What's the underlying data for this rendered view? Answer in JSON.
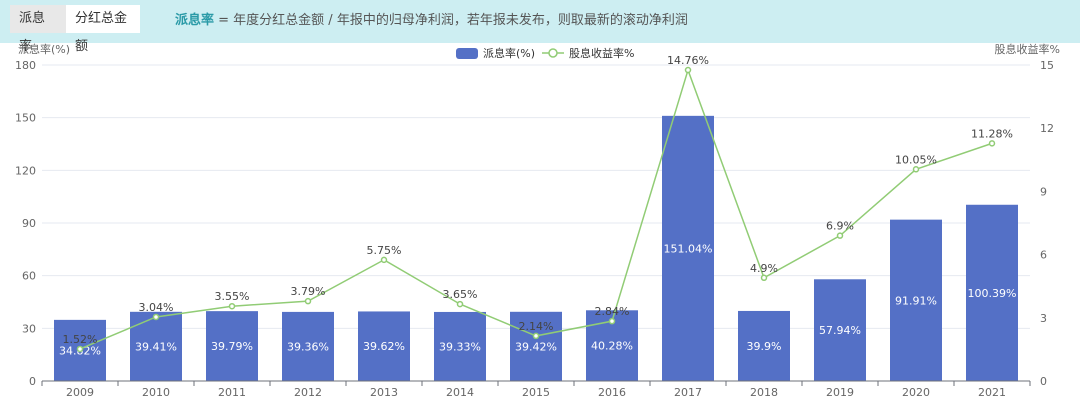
{
  "tabs": [
    {
      "label": "派息率",
      "active": true
    },
    {
      "label": "分红总金额",
      "active": false
    }
  ],
  "description": {
    "term": "派息率",
    "text": " = 年度分红总金额 / 年报中的归母净利润，若年报未发布，则取最新的滚动净利润"
  },
  "colors": {
    "bar": "#5470c6",
    "line": "#91cc75",
    "topbar": "#cdeef2"
  },
  "chart_data": {
    "type": "bar+line",
    "categories": [
      "2009",
      "2010",
      "2011",
      "2012",
      "2013",
      "2014",
      "2015",
      "2016",
      "2017",
      "2018",
      "2019",
      "2020",
      "2021"
    ],
    "series": [
      {
        "name": "派息率(%)",
        "type": "bar",
        "axis": "left",
        "values": [
          34.82,
          39.41,
          39.79,
          39.36,
          39.62,
          39.33,
          39.42,
          40.28,
          151.04,
          39.9,
          57.94,
          91.91,
          100.39
        ],
        "labels": [
          "34.82%",
          "39.41%",
          "39.79%",
          "39.36%",
          "39.62%",
          "39.33%",
          "39.42%",
          "40.28%",
          "151.04%",
          "39.9%",
          "57.94%",
          "91.91%",
          "100.39%"
        ]
      },
      {
        "name": "股息收益率%",
        "type": "line",
        "axis": "right",
        "values": [
          1.52,
          3.04,
          3.55,
          3.79,
          5.75,
          3.65,
          2.14,
          2.84,
          14.76,
          4.9,
          6.9,
          10.05,
          11.28
        ],
        "labels": [
          "1.52%",
          "3.04%",
          "3.55%",
          "3.79%",
          "5.75%",
          "3.65%",
          "2.14%",
          "2.84%",
          "14.76%",
          "4.9%",
          "6.9%",
          "10.05%",
          "11.28%"
        ]
      }
    ],
    "y_left": {
      "label": "派息率(%)",
      "range": [
        0,
        180
      ],
      "ticks": [
        "0",
        "30",
        "60",
        "90",
        "120",
        "150",
        "180"
      ]
    },
    "y_right": {
      "label": "股息收益率%",
      "range": [
        0,
        15
      ],
      "ticks": [
        "0",
        "3",
        "6",
        "9",
        "12",
        "15"
      ]
    },
    "legend_position": "top-center",
    "grid": true
  }
}
